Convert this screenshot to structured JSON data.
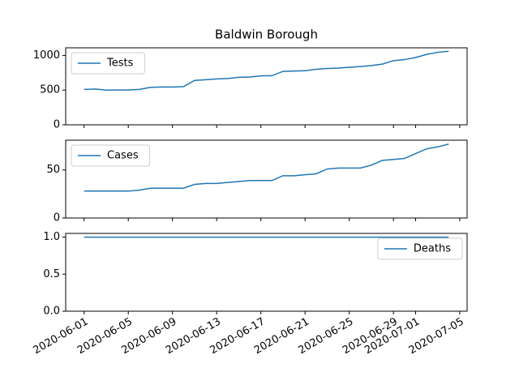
{
  "chart_data": [
    {
      "type": "line",
      "title": "Baldwin Borough",
      "x": [
        "2020-06-01",
        "2020-06-02",
        "2020-06-03",
        "2020-06-04",
        "2020-06-05",
        "2020-06-06",
        "2020-06-07",
        "2020-06-08",
        "2020-06-09",
        "2020-06-10",
        "2020-06-11",
        "2020-06-12",
        "2020-06-13",
        "2020-06-14",
        "2020-06-15",
        "2020-06-16",
        "2020-06-17",
        "2020-06-18",
        "2020-06-19",
        "2020-06-20",
        "2020-06-21",
        "2020-06-22",
        "2020-06-23",
        "2020-06-24",
        "2020-06-25",
        "2020-06-26",
        "2020-06-27",
        "2020-06-28",
        "2020-06-29",
        "2020-06-30",
        "2020-07-01",
        "2020-07-02",
        "2020-07-03",
        "2020-07-04"
      ],
      "series": [
        {
          "name": "Tests",
          "color": "#1f77b4",
          "values": [
            510,
            515,
            500,
            502,
            502,
            510,
            540,
            545,
            545,
            550,
            640,
            650,
            662,
            668,
            685,
            690,
            705,
            708,
            770,
            775,
            780,
            800,
            812,
            818,
            830,
            840,
            855,
            875,
            925,
            940,
            970,
            1015,
            1045,
            1060
          ]
        }
      ],
      "xlim": [
        "2020-05-30T08:00Z",
        "2020-07-05T16:00Z"
      ],
      "xticks": [
        "2020-06-01",
        "2020-06-05",
        "2020-06-09",
        "2020-06-13",
        "2020-06-17",
        "2020-06-21",
        "2020-06-25",
        "2020-06-29",
        "2020-07-01",
        "2020-07-05"
      ],
      "ylim": [
        0,
        1110
      ],
      "yticks": [
        0,
        500,
        1000
      ],
      "legend": "upper left"
    },
    {
      "type": "line",
      "x": [
        "2020-06-01",
        "2020-06-02",
        "2020-06-03",
        "2020-06-04",
        "2020-06-05",
        "2020-06-06",
        "2020-06-07",
        "2020-06-08",
        "2020-06-09",
        "2020-06-10",
        "2020-06-11",
        "2020-06-12",
        "2020-06-13",
        "2020-06-14",
        "2020-06-15",
        "2020-06-16",
        "2020-06-17",
        "2020-06-18",
        "2020-06-19",
        "2020-06-20",
        "2020-06-21",
        "2020-06-22",
        "2020-06-23",
        "2020-06-24",
        "2020-06-25",
        "2020-06-26",
        "2020-06-27",
        "2020-06-28",
        "2020-06-29",
        "2020-06-30",
        "2020-07-01",
        "2020-07-02",
        "2020-07-03",
        "2020-07-04"
      ],
      "series": [
        {
          "name": "Cases",
          "color": "#1f77b4",
          "values": [
            28,
            28,
            28,
            28,
            28,
            29,
            31,
            31,
            31,
            31,
            35,
            36,
            36,
            37,
            38,
            39,
            39,
            39,
            44,
            44,
            45,
            46,
            51,
            52,
            52,
            52,
            55,
            60,
            61,
            62,
            67,
            72,
            74,
            77
          ]
        }
      ],
      "xlim": [
        "2020-05-30T08:00Z",
        "2020-07-05T16:00Z"
      ],
      "xticks": [
        "2020-06-01",
        "2020-06-05",
        "2020-06-09",
        "2020-06-13",
        "2020-06-17",
        "2020-06-21",
        "2020-06-25",
        "2020-06-29",
        "2020-07-01",
        "2020-07-05"
      ],
      "ylim": [
        0,
        81
      ],
      "yticks": [
        0,
        50
      ],
      "legend": "upper left"
    },
    {
      "type": "line",
      "x": [
        "2020-06-01",
        "2020-06-02",
        "2020-06-03",
        "2020-06-04",
        "2020-06-05",
        "2020-06-06",
        "2020-06-07",
        "2020-06-08",
        "2020-06-09",
        "2020-06-10",
        "2020-06-11",
        "2020-06-12",
        "2020-06-13",
        "2020-06-14",
        "2020-06-15",
        "2020-06-16",
        "2020-06-17",
        "2020-06-18",
        "2020-06-19",
        "2020-06-20",
        "2020-06-21",
        "2020-06-22",
        "2020-06-23",
        "2020-06-24",
        "2020-06-25",
        "2020-06-26",
        "2020-06-27",
        "2020-06-28",
        "2020-06-29",
        "2020-06-30",
        "2020-07-01",
        "2020-07-02",
        "2020-07-03",
        "2020-07-04"
      ],
      "series": [
        {
          "name": "Deaths",
          "color": "#1f77b4",
          "values": [
            1,
            1,
            1,
            1,
            1,
            1,
            1,
            1,
            1,
            1,
            1,
            1,
            1,
            1,
            1,
            1,
            1,
            1,
            1,
            1,
            1,
            1,
            1,
            1,
            1,
            1,
            1,
            1,
            1,
            1,
            1,
            1,
            1,
            1
          ]
        }
      ],
      "xlim": [
        "2020-05-30T08:00Z",
        "2020-07-05T16:00Z"
      ],
      "xticks": [
        "2020-06-01",
        "2020-06-05",
        "2020-06-09",
        "2020-06-13",
        "2020-06-17",
        "2020-06-21",
        "2020-06-25",
        "2020-06-29",
        "2020-07-01",
        "2020-07-05"
      ],
      "ylim": [
        0,
        1.05
      ],
      "yticks": [
        {
          "value": 0,
          "label": "0.0"
        },
        {
          "value": 0.5,
          "label": "0.5"
        },
        {
          "value": 1,
          "label": "1.0"
        }
      ],
      "legend": "upper right"
    }
  ]
}
